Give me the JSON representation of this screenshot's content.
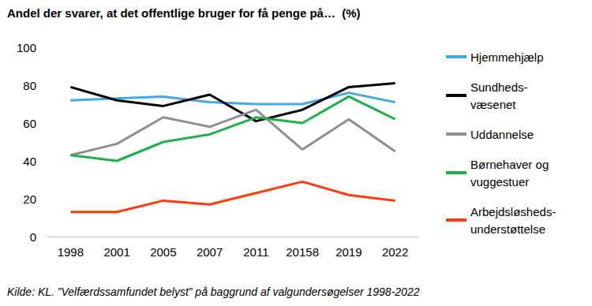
{
  "chart_data": {
    "type": "line",
    "title": "Andel der svarer, at det offentlige bruger for få penge på…  (%)",
    "source": "Kilde: KL. ”Velfærdssamfundet belyst” på baggrund af valgundersøgelser 1998-2022",
    "categories": [
      "1998",
      "2001",
      "2005",
      "2007",
      "2011",
      "20158",
      "2019",
      "2022"
    ],
    "series": [
      {
        "name": "Hjemmehjælp",
        "color": "#41a9e8",
        "values": [
          72,
          73,
          74,
          71,
          70,
          70,
          76,
          71
        ]
      },
      {
        "name": "Sundheds-\nvæsenet",
        "color": "#000000",
        "values": [
          79,
          72,
          69,
          75,
          61,
          67,
          79,
          81
        ]
      },
      {
        "name": "Uddannelse",
        "color": "#8f8f8f",
        "values": [
          43,
          49,
          63,
          58,
          67,
          46,
          62,
          45
        ]
      },
      {
        "name": "Børnehaver og\nvuggestuer",
        "color": "#1db14b",
        "values": [
          43,
          40,
          50,
          54,
          63,
          60,
          74,
          62
        ]
      },
      {
        "name": "Arbejdsløsheds-\nunderstøttelse",
        "color": "#ff3b0a",
        "values": [
          13,
          13,
          19,
          17,
          23,
          29,
          22,
          19
        ]
      }
    ],
    "ylim": [
      0,
      100
    ],
    "yticks": [
      0,
      20,
      40,
      60,
      80,
      100
    ],
    "grid": false,
    "legend": "right"
  }
}
